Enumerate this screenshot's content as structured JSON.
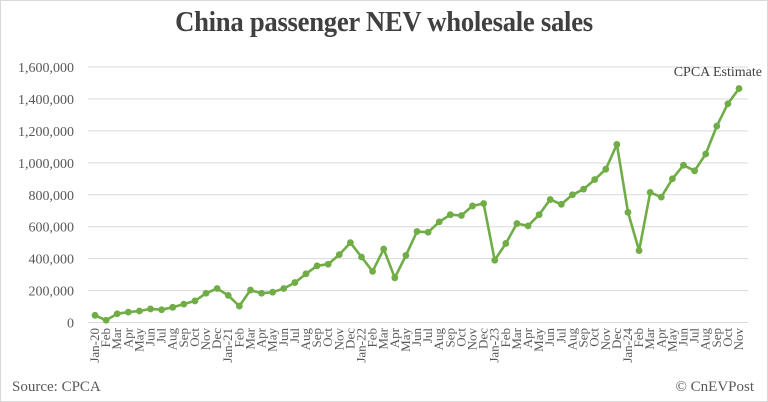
{
  "header": {
    "title": "China passenger NEV wholesale sales"
  },
  "footer": {
    "source": "Source: CPCA",
    "credit": "© CnEVPost"
  },
  "annotation": {
    "text": "CPCA Estimate"
  },
  "colors": {
    "line": "#70AD47",
    "gridline": "#D9D9D9",
    "text": "#595959",
    "title": "#404040"
  },
  "chart_data": {
    "type": "line",
    "title": "China passenger NEV wholesale sales",
    "xlabel": "",
    "ylabel": "",
    "ylim": [
      0,
      1600000
    ],
    "yticks": [
      0,
      200000,
      400000,
      600000,
      800000,
      1000000,
      1200000,
      1400000,
      1600000
    ],
    "ytick_labels": [
      "0",
      "200,000",
      "400,000",
      "600,000",
      "800,000",
      "1,000,000",
      "1,200,000",
      "1,400,000",
      "1,600,000"
    ],
    "grid": true,
    "legend": "none",
    "annotations": [
      {
        "text": "CPCA Estimate",
        "x": "Nov",
        "position": "above last point"
      }
    ],
    "categories": [
      "Jan-20",
      "Feb",
      "Mar",
      "Apr",
      "May",
      "Jun",
      "Jul",
      "Aug",
      "Sep",
      "Oct",
      "Nov",
      "Dec",
      "Jan-21",
      "Feb",
      "Mar",
      "Apr",
      "May",
      "Jun",
      "Jul",
      "Aug",
      "Sep",
      "Oct",
      "Nov",
      "Dec",
      "Jan-22",
      "Feb",
      "Mar",
      "Apr",
      "May",
      "Jun",
      "Jul",
      "Aug",
      "Sep",
      "Oct",
      "Nov",
      "Dec",
      "Jan-23",
      "Feb",
      "Mar",
      "Apr",
      "May",
      "Jun",
      "Jul",
      "Aug",
      "Sep",
      "Oct",
      "Nov",
      "Dec",
      "Jan-24",
      "Feb",
      "Mar",
      "Apr",
      "May",
      "Jun",
      "Jul",
      "Aug",
      "Sep",
      "Oct",
      "Nov"
    ],
    "series": [
      {
        "name": "NEV wholesale sales",
        "values": [
          45000,
          14000,
          55000,
          65000,
          72000,
          85000,
          80000,
          95000,
          115000,
          135000,
          183000,
          213000,
          170000,
          103000,
          203000,
          183000,
          190000,
          213000,
          250000,
          305000,
          355000,
          365000,
          425000,
          500000,
          410000,
          320000,
          460000,
          280000,
          420000,
          570000,
          565000,
          630000,
          675000,
          670000,
          730000,
          745000,
          390000,
          495000,
          620000,
          605000,
          675000,
          770000,
          740000,
          800000,
          835000,
          895000,
          960000,
          1115000,
          690000,
          450000,
          815000,
          785000,
          900000,
          985000,
          950000,
          1055000,
          1230000,
          1370000,
          1465000
        ]
      }
    ]
  }
}
